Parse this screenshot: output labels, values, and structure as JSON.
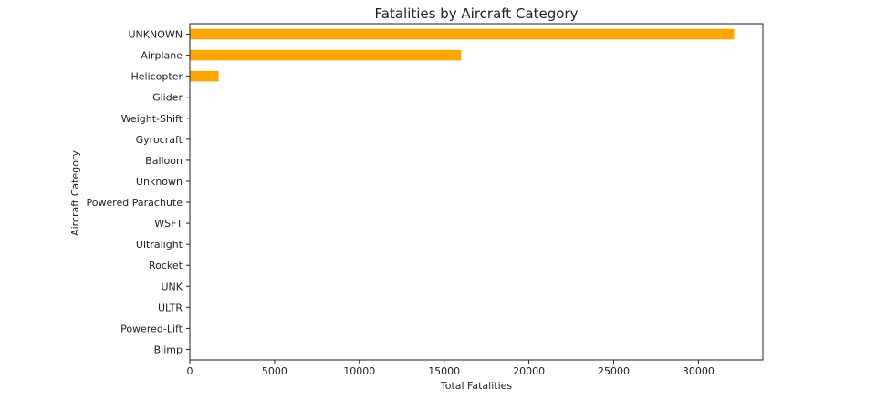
{
  "chart_data": {
    "type": "bar",
    "orientation": "horizontal",
    "title": "Fatalities by Aircraft Category",
    "xlabel": "Total Fatalities",
    "ylabel": "Aircraft Category",
    "categories": [
      "UNKNOWN",
      "Airplane",
      "Helicopter",
      "Glider",
      "Weight-Shift",
      "Gyrocraft",
      "Balloon",
      "Unknown",
      "Powered Parachute",
      "WSFT",
      "Ultralight",
      "Rocket",
      "UNK",
      "ULTR",
      "Powered-Lift",
      "Blimp"
    ],
    "values": [
      32100,
      16000,
      1700,
      30,
      20,
      15,
      12,
      8,
      6,
      5,
      4,
      2,
      1,
      1,
      0,
      0
    ],
    "xlim": [
      0,
      33800
    ],
    "xticks": [
      0,
      5000,
      10000,
      15000,
      20000,
      25000,
      30000
    ],
    "grid": false,
    "legend": "none",
    "bar_color": "#FFA500",
    "axis_color": "#222222"
  }
}
